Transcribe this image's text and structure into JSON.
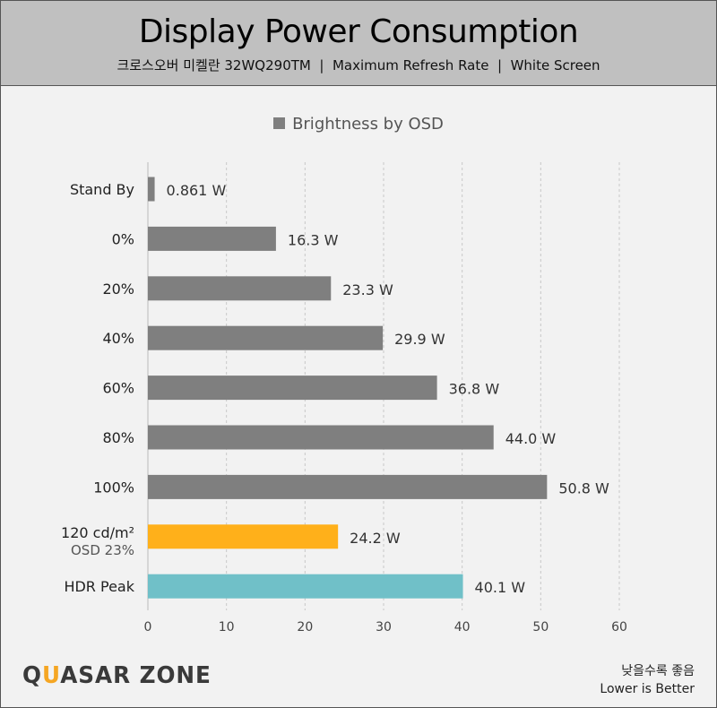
{
  "header": {
    "title": "Display Power Consumption",
    "subtitle": "크로스오버 미켈란 32WQ290TM  |  Maximum Refresh Rate  |  White Screen"
  },
  "chart_data": {
    "type": "bar",
    "orientation": "horizontal",
    "legend": "Brightness by OSD",
    "legend_position": "top",
    "categories": [
      "Stand By",
      "0%",
      "20%",
      "40%",
      "60%",
      "80%",
      "100%",
      "120 cd/m²",
      "HDR Peak"
    ],
    "category_sublabels": {
      "7": "OSD 23%"
    },
    "values": [
      0.861,
      16.3,
      23.3,
      29.9,
      36.8,
      44.0,
      50.8,
      24.2,
      40.1
    ],
    "data_labels": [
      "0.861 W",
      "16.3 W",
      "23.3 W",
      "29.9 W",
      "36.8 W",
      "44.0 W",
      "50.8 W",
      "24.2 W",
      "40.1 W"
    ],
    "colors": [
      "#7f7f7f",
      "#7f7f7f",
      "#7f7f7f",
      "#7f7f7f",
      "#7f7f7f",
      "#7f7f7f",
      "#7f7f7f",
      "#ffb01a",
      "#70c0c8"
    ],
    "xlim": [
      0,
      60
    ],
    "xticks": [
      0,
      10,
      20,
      30,
      40,
      50,
      60
    ],
    "grid": true,
    "xlabel": "",
    "ylabel": ""
  },
  "footer": {
    "logo": "QUASAR ZONE",
    "note_ko": "낮을수록 좋음",
    "note_en": "Lower is Better"
  }
}
